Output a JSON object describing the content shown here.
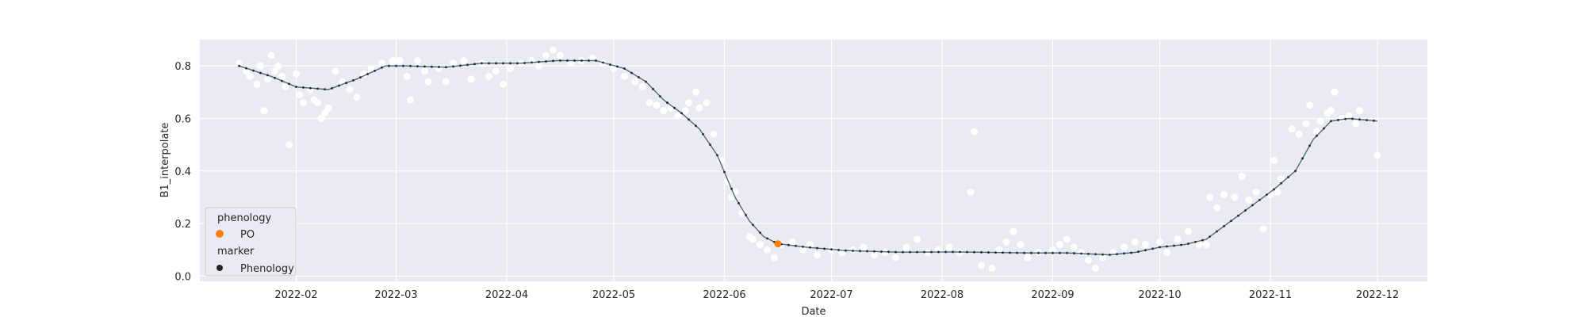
{
  "chart_data": {
    "type": "scatter",
    "xlabel": "Date",
    "ylabel": "B1_interpolate",
    "xlim": [
      "2022-01-05",
      "2022-12-15"
    ],
    "ylim": [
      -0.02,
      0.9
    ],
    "grid": true,
    "x_ticks": [
      "2022-02",
      "2022-03",
      "2022-04",
      "2022-05",
      "2022-06",
      "2022-07",
      "2022-08",
      "2022-09",
      "2022-10",
      "2022-11",
      "2022-12"
    ],
    "y_ticks": [
      0.0,
      0.2,
      0.4,
      0.6,
      0.8
    ],
    "y_tick_labels": [
      "0.0",
      "0.2",
      "0.4",
      "0.6",
      "0.8"
    ],
    "legend": {
      "position": "lower-left",
      "sections": [
        {
          "title": "phenology",
          "items": [
            {
              "label": "PO",
              "color": "#ff7f0e",
              "shape": "circle"
            }
          ]
        },
        {
          "title": "marker",
          "items": [
            {
              "label": "Phenology",
              "color": "#262626",
              "shape": "circle"
            }
          ]
        }
      ]
    },
    "colors": {
      "background": "#eaeaf2",
      "grid": "#ffffff",
      "raw_points": "#ffffff",
      "curve": "#4c6a80",
      "po": "#ff7f0e"
    },
    "raw_points": [
      [
        "2022-01-16",
        0.81
      ],
      [
        "2022-01-18",
        0.78
      ],
      [
        "2022-01-19",
        0.76
      ],
      [
        "2022-01-21",
        0.73
      ],
      [
        "2022-01-22",
        0.8
      ],
      [
        "2022-01-23",
        0.63
      ],
      [
        "2022-01-24",
        0.75
      ],
      [
        "2022-01-25",
        0.84
      ],
      [
        "2022-01-26",
        0.78
      ],
      [
        "2022-01-27",
        0.8
      ],
      [
        "2022-01-28",
        0.76
      ],
      [
        "2022-01-29",
        0.72
      ],
      [
        "2022-01-30",
        0.5
      ],
      [
        "2022-02-01",
        0.77
      ],
      [
        "2022-02-02",
        0.69
      ],
      [
        "2022-02-03",
        0.66
      ],
      [
        "2022-02-05",
        0.71
      ],
      [
        "2022-02-06",
        0.67
      ],
      [
        "2022-02-07",
        0.66
      ],
      [
        "2022-02-08",
        0.6
      ],
      [
        "2022-02-09",
        0.62
      ],
      [
        "2022-02-10",
        0.64
      ],
      [
        "2022-02-12",
        0.78
      ],
      [
        "2022-02-14",
        0.74
      ],
      [
        "2022-02-16",
        0.71
      ],
      [
        "2022-02-18",
        0.68
      ],
      [
        "2022-02-20",
        0.77
      ],
      [
        "2022-02-22",
        0.79
      ],
      [
        "2022-02-25",
        0.81
      ],
      [
        "2022-02-28",
        0.82
      ],
      [
        "2022-03-02",
        0.82
      ],
      [
        "2022-03-04",
        0.76
      ],
      [
        "2022-03-05",
        0.67
      ],
      [
        "2022-03-07",
        0.82
      ],
      [
        "2022-03-09",
        0.78
      ],
      [
        "2022-03-10",
        0.74
      ],
      [
        "2022-03-13",
        0.79
      ],
      [
        "2022-03-15",
        0.74
      ],
      [
        "2022-03-17",
        0.81
      ],
      [
        "2022-03-20",
        0.82
      ],
      [
        "2022-03-22",
        0.75
      ],
      [
        "2022-03-25",
        0.81
      ],
      [
        "2022-03-27",
        0.76
      ],
      [
        "2022-03-29",
        0.78
      ],
      [
        "2022-03-31",
        0.73
      ],
      [
        "2022-04-02",
        0.79
      ],
      [
        "2022-04-05",
        0.81
      ],
      [
        "2022-04-08",
        0.82
      ],
      [
        "2022-04-10",
        0.8
      ],
      [
        "2022-04-12",
        0.84
      ],
      [
        "2022-04-14",
        0.86
      ],
      [
        "2022-04-16",
        0.84
      ],
      [
        "2022-04-19",
        0.81
      ],
      [
        "2022-04-22",
        0.82
      ],
      [
        "2022-04-25",
        0.83
      ],
      [
        "2022-04-28",
        0.81
      ],
      [
        "2022-05-01",
        0.79
      ],
      [
        "2022-05-04",
        0.76
      ],
      [
        "2022-05-07",
        0.74
      ],
      [
        "2022-05-09",
        0.72
      ],
      [
        "2022-05-11",
        0.66
      ],
      [
        "2022-05-13",
        0.65
      ],
      [
        "2022-05-15",
        0.63
      ],
      [
        "2022-05-17",
        0.64
      ],
      [
        "2022-05-19",
        0.61
      ],
      [
        "2022-05-21",
        0.63
      ],
      [
        "2022-05-22",
        0.66
      ],
      [
        "2022-05-24",
        0.7
      ],
      [
        "2022-05-25",
        0.64
      ],
      [
        "2022-05-27",
        0.66
      ],
      [
        "2022-05-29",
        0.54
      ],
      [
        "2022-05-31",
        0.44
      ],
      [
        "2022-06-02",
        0.36
      ],
      [
        "2022-06-03",
        0.3
      ],
      [
        "2022-06-04",
        0.32
      ],
      [
        "2022-06-06",
        0.24
      ],
      [
        "2022-06-08",
        0.15
      ],
      [
        "2022-06-09",
        0.14
      ],
      [
        "2022-06-11",
        0.12
      ],
      [
        "2022-06-13",
        0.1
      ],
      [
        "2022-06-15",
        0.07
      ],
      [
        "2022-06-17",
        0.12
      ],
      [
        "2022-06-20",
        0.13
      ],
      [
        "2022-06-23",
        0.1
      ],
      [
        "2022-06-25",
        0.12
      ],
      [
        "2022-06-27",
        0.08
      ],
      [
        "2022-07-01",
        0.1
      ],
      [
        "2022-07-04",
        0.09
      ],
      [
        "2022-07-07",
        0.1
      ],
      [
        "2022-07-10",
        0.11
      ],
      [
        "2022-07-13",
        0.08
      ],
      [
        "2022-07-16",
        0.09
      ],
      [
        "2022-07-19",
        0.07
      ],
      [
        "2022-07-22",
        0.11
      ],
      [
        "2022-07-25",
        0.14
      ],
      [
        "2022-07-28",
        0.09
      ],
      [
        "2022-07-31",
        0.1
      ],
      [
        "2022-08-03",
        0.11
      ],
      [
        "2022-08-06",
        0.09
      ],
      [
        "2022-08-09",
        0.32
      ],
      [
        "2022-08-10",
        0.55
      ],
      [
        "2022-08-12",
        0.04
      ],
      [
        "2022-08-15",
        0.03
      ],
      [
        "2022-08-17",
        0.1
      ],
      [
        "2022-08-19",
        0.13
      ],
      [
        "2022-08-21",
        0.17
      ],
      [
        "2022-08-23",
        0.12
      ],
      [
        "2022-08-25",
        0.07
      ],
      [
        "2022-08-28",
        0.09
      ],
      [
        "2022-09-01",
        0.1
      ],
      [
        "2022-09-03",
        0.12
      ],
      [
        "2022-09-05",
        0.14
      ],
      [
        "2022-09-07",
        0.11
      ],
      [
        "2022-09-09",
        0.09
      ],
      [
        "2022-09-11",
        0.06
      ],
      [
        "2022-09-13",
        0.03
      ],
      [
        "2022-09-15",
        0.07
      ],
      [
        "2022-09-18",
        0.09
      ],
      [
        "2022-09-21",
        0.11
      ],
      [
        "2022-09-24",
        0.13
      ],
      [
        "2022-09-27",
        0.12
      ],
      [
        "2022-10-01",
        0.13
      ],
      [
        "2022-10-03",
        0.09
      ],
      [
        "2022-10-06",
        0.14
      ],
      [
        "2022-10-09",
        0.17
      ],
      [
        "2022-10-12",
        0.12
      ],
      [
        "2022-10-14",
        0.12
      ],
      [
        "2022-10-15",
        0.3
      ],
      [
        "2022-10-17",
        0.26
      ],
      [
        "2022-10-19",
        0.31
      ],
      [
        "2022-10-22",
        0.3
      ],
      [
        "2022-10-24",
        0.38
      ],
      [
        "2022-10-26",
        0.29
      ],
      [
        "2022-10-28",
        0.32
      ],
      [
        "2022-10-30",
        0.18
      ],
      [
        "2022-11-01",
        0.31
      ],
      [
        "2022-11-02",
        0.44
      ],
      [
        "2022-11-03",
        0.32
      ],
      [
        "2022-11-04",
        0.37
      ],
      [
        "2022-11-07",
        0.56
      ],
      [
        "2022-11-09",
        0.54
      ],
      [
        "2022-11-11",
        0.58
      ],
      [
        "2022-11-12",
        0.65
      ],
      [
        "2022-11-14",
        0.55
      ],
      [
        "2022-11-15",
        0.59
      ],
      [
        "2022-11-17",
        0.62
      ],
      [
        "2022-11-18",
        0.63
      ],
      [
        "2022-11-19",
        0.7
      ],
      [
        "2022-11-21",
        0.6
      ],
      [
        "2022-11-23",
        0.61
      ],
      [
        "2022-11-25",
        0.58
      ],
      [
        "2022-11-26",
        0.63
      ],
      [
        "2022-12-01",
        0.46
      ]
    ],
    "curve": [
      [
        "2022-01-16",
        0.8
      ],
      [
        "2022-01-25",
        0.76
      ],
      [
        "2022-02-01",
        0.72
      ],
      [
        "2022-02-10",
        0.71
      ],
      [
        "2022-02-18",
        0.75
      ],
      [
        "2022-02-26",
        0.8
      ],
      [
        "2022-03-04",
        0.8
      ],
      [
        "2022-03-15",
        0.795
      ],
      [
        "2022-03-25",
        0.81
      ],
      [
        "2022-04-05",
        0.81
      ],
      [
        "2022-04-15",
        0.82
      ],
      [
        "2022-04-26",
        0.82
      ],
      [
        "2022-05-04",
        0.79
      ],
      [
        "2022-05-10",
        0.74
      ],
      [
        "2022-05-15",
        0.67
      ],
      [
        "2022-05-20",
        0.62
      ],
      [
        "2022-05-25",
        0.56
      ],
      [
        "2022-05-30",
        0.46
      ],
      [
        "2022-06-04",
        0.3
      ],
      [
        "2022-06-08",
        0.21
      ],
      [
        "2022-06-12",
        0.15
      ],
      [
        "2022-06-16",
        0.123
      ],
      [
        "2022-06-24",
        0.11
      ],
      [
        "2022-07-05",
        0.097
      ],
      [
        "2022-07-20",
        0.091
      ],
      [
        "2022-08-05",
        0.092
      ],
      [
        "2022-08-25",
        0.088
      ],
      [
        "2022-09-05",
        0.088
      ],
      [
        "2022-09-17",
        0.081
      ],
      [
        "2022-09-24",
        0.09
      ],
      [
        "2022-10-01",
        0.11
      ],
      [
        "2022-10-08",
        0.12
      ],
      [
        "2022-10-14",
        0.14
      ],
      [
        "2022-10-20",
        0.2
      ],
      [
        "2022-10-26",
        0.26
      ],
      [
        "2022-11-02",
        0.33
      ],
      [
        "2022-11-08",
        0.4
      ],
      [
        "2022-11-13",
        0.52
      ],
      [
        "2022-11-18",
        0.59
      ],
      [
        "2022-11-23",
        0.6
      ],
      [
        "2022-12-01",
        0.59
      ]
    ],
    "po_point": [
      "2022-06-16",
      0.123
    ]
  }
}
